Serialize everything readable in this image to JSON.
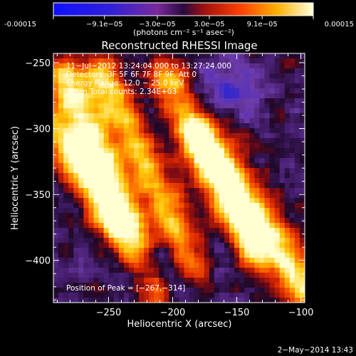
{
  "colorbar": {
    "ticks": [
      "-0.00015",
      "−9.1e−05",
      "−3.0e−05",
      "3.0e−05",
      "9.1e−05",
      "0.00015"
    ],
    "tick_values": [
      -0.00015,
      -9.1e-05,
      -3e-05,
      3e-05,
      9.1e-05,
      0.00015
    ],
    "range": [
      -0.00015,
      0.00015
    ],
    "unit_label": "(photons cm⁻² s⁻¹ asec⁻²)"
  },
  "chart_data": {
    "type": "heatmap",
    "title": "Reconstructed RHESSI Image",
    "xlabel": "Heliocentric X (arcsec)",
    "ylabel": "Heliocentric Y (arcsec)",
    "xlim": [
      -293,
      -97
    ],
    "ylim": [
      -432,
      -243
    ],
    "xticks": [
      -250,
      -200,
      -150,
      -100
    ],
    "xtick_labels": [
      "−250",
      "−200",
      "−150",
      "−100"
    ],
    "yticks": [
      -250,
      -300,
      -350,
      -400
    ],
    "ytick_labels": [
      "−250",
      "−300",
      "−350",
      "−400"
    ],
    "grid": false,
    "colormap": "hot (black-purple-red-orange-yellow-white)",
    "peak": [
      -267,
      -314
    ],
    "annotations": [
      "11−Jul−2012 13:24:04.000 to 13:27:24.000",
      "Detectors: 3F 5F 6F 7F 8F 9F, Att 0",
      "Energy Range: 12.0 − 25.0 keV",
      "Clean     Total counts: 2.34E+03"
    ],
    "peak_label": "Position of Peak = [−267,−314]"
  },
  "footer": {
    "date": "2−May−2014 13:43"
  }
}
